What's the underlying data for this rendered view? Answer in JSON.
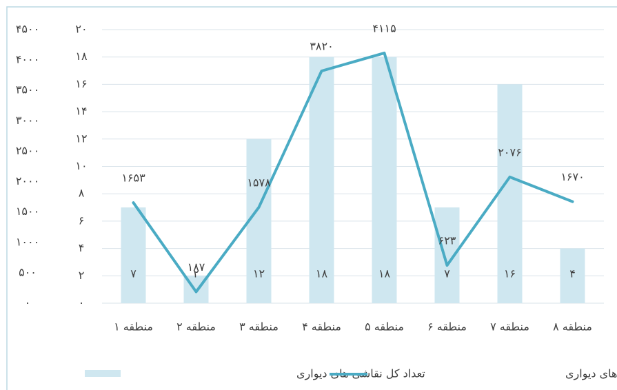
{
  "chart_data": {
    "type": "combo",
    "categories": [
      "منطقه ۱",
      "منطقه ۲",
      "منطقه ۳",
      "منطقه ۴",
      "منطقه ۵",
      "منطقه ۶",
      "منطقه ۷",
      "منطقه ۸"
    ],
    "series": [
      {
        "name": "تعداد کل نقاشی های دیواری",
        "type": "bar",
        "color": "#cfe7f0",
        "values": [
          7,
          2,
          12,
          18,
          18,
          7,
          16,
          4
        ],
        "value_labels": [
          "۷",
          "۲",
          "۱۲",
          "۱۸",
          "۱۸",
          "۷",
          "۱۶",
          "۴"
        ]
      },
      {
        "name": "مساحت کل نقاشی های دیواری",
        "type": "line",
        "axis": "y2",
        "color": "#4aabc4",
        "values": [
          1653,
          187,
          1578,
          3820,
          4115,
          623,
          2076,
          1670
        ],
        "value_labels": [
          "۱۶۵۳",
          "۱۸۷",
          "۱۵۷۸",
          "۳۸۲۰",
          "۴۱۱۵",
          "۶۲۳",
          "۲۰۷۶",
          "۱۶۷۰"
        ]
      }
    ],
    "ylim": [
      0,
      20
    ],
    "yticks": [
      {
        "value": 0,
        "label": "۰"
      },
      {
        "value": 2,
        "label": "۲"
      },
      {
        "value": 4,
        "label": "۴"
      },
      {
        "value": 6,
        "label": "۶"
      },
      {
        "value": 8,
        "label": "۸"
      },
      {
        "value": 10,
        "label": "۱۰"
      },
      {
        "value": 12,
        "label": "۱۲"
      },
      {
        "value": 14,
        "label": "۱۴"
      },
      {
        "value": 16,
        "label": "۱۶"
      },
      {
        "value": 18,
        "label": "۱۸"
      },
      {
        "value": 20,
        "label": "۲۰"
      }
    ],
    "y2lim": [
      0,
      4500
    ],
    "y2ticks": [
      {
        "value": 0,
        "label": "۰"
      },
      {
        "value": 500,
        "label": "۵۰۰"
      },
      {
        "value": 1000,
        "label": "۱۰۰۰"
      },
      {
        "value": 1500,
        "label": "۱۵۰۰"
      },
      {
        "value": 2000,
        "label": "۲۰۰۰"
      },
      {
        "value": 2500,
        "label": "۲۵۰۰"
      },
      {
        "value": 3000,
        "label": "۳۰۰۰"
      },
      {
        "value": 3500,
        "label": "۳۵۰۰"
      },
      {
        "value": 4000,
        "label": "۴۰۰۰"
      },
      {
        "value": 4500,
        "label": "۴۵۰۰"
      }
    ],
    "grid": true
  }
}
